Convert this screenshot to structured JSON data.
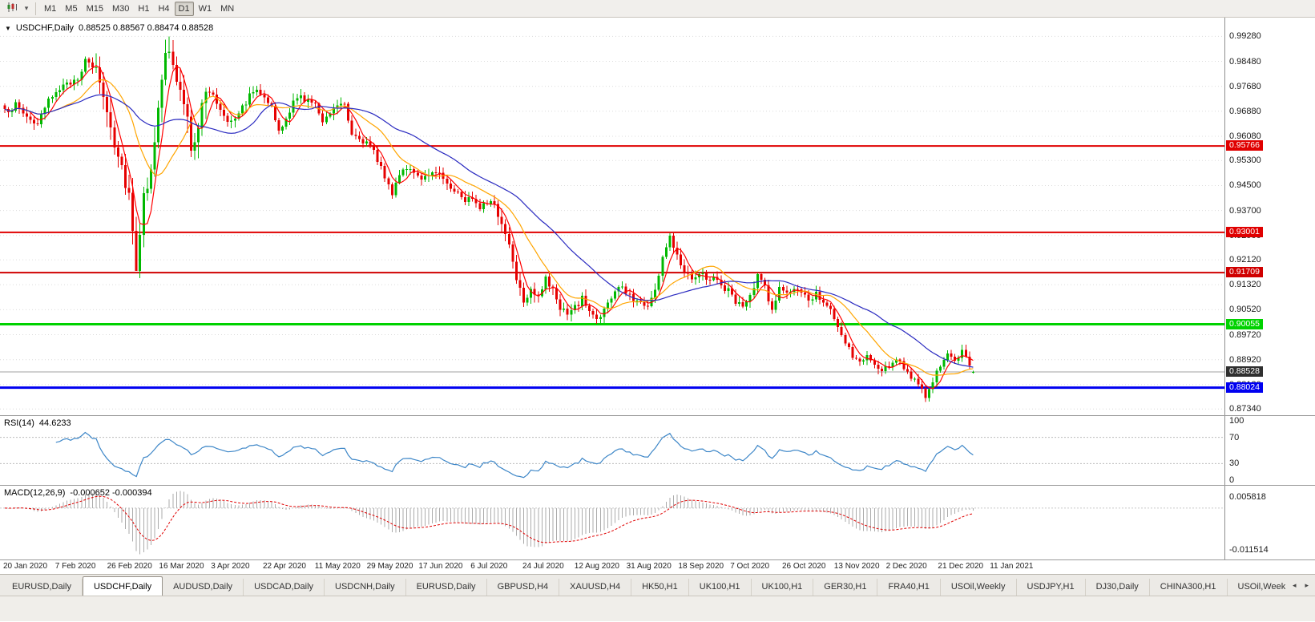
{
  "toolbar": {
    "timeframes": [
      "M1",
      "M5",
      "M15",
      "M30",
      "H1",
      "H4",
      "D1",
      "W1",
      "MN"
    ],
    "active_timeframe": "D1",
    "icons": [
      {
        "name": "chart-type-icon"
      },
      {
        "name": "dropdown-caret-icon",
        "glyph": "▾"
      }
    ]
  },
  "chart": {
    "marker": "▼",
    "symbol": "USDCHF,Daily",
    "ohlc_text": "0.88525 0.88567 0.88474 0.88528"
  },
  "price_axis": {
    "ticks": [
      "0.99280",
      "0.98480",
      "0.97680",
      "0.96880",
      "0.96080",
      "0.95300",
      "0.94500",
      "0.93700",
      "0.92900",
      "0.92120",
      "0.91320",
      "0.90520",
      "0.89720",
      "0.88920",
      "0.88120",
      "0.87340"
    ]
  },
  "levels": [
    {
      "label": "0.95766",
      "price": 0.95766,
      "color": "#E00000",
      "width": 2,
      "kind": "resistance-line"
    },
    {
      "label": "0.93001",
      "price": 0.93001,
      "color": "#E00000",
      "width": 2,
      "kind": "resistance-line"
    },
    {
      "label": "0.91709",
      "price": 0.91709,
      "color": "#D00000",
      "width": 2,
      "kind": "resistance-line"
    },
    {
      "label": "0.90055",
      "price": 0.90055,
      "color": "#00D200",
      "width": 3,
      "kind": "support-line"
    },
    {
      "label": "0.88024",
      "price": 0.88024,
      "color": "#0000F0",
      "width": 3,
      "kind": "support-line"
    },
    {
      "label": "0.88528",
      "price": 0.88528,
      "color": "#A0A0A0",
      "width": 1,
      "badge_bg": "#2F2F2F",
      "kind": "bid-line"
    }
  ],
  "rsi": {
    "title": "RSI(14)",
    "value": "44.6233",
    "color": "#3E87C8",
    "levels": [
      70,
      30
    ],
    "axis_labels": [
      {
        "v": 100,
        "t": "100"
      },
      {
        "v": 70,
        "t": "70"
      },
      {
        "v": 30,
        "t": "30"
      },
      {
        "v": 0,
        "t": "0"
      }
    ]
  },
  "macd": {
    "title": "MACD(12,26,9)",
    "values": "-0.000652 -0.000394",
    "axis_top": "0.005818",
    "axis_bottom": "-0.011514",
    "hist_color": "#ABABAB",
    "signal_color": "#E00000"
  },
  "date_axis": {
    "labels": [
      "20 Jan 2020",
      "7 Feb 2020",
      "26 Feb 2020",
      "16 Mar 2020",
      "3 Apr 2020",
      "22 Apr 2020",
      "11 May 2020",
      "29 May 2020",
      "17 Jun 2020",
      "6 Jul 2020",
      "24 Jul 2020",
      "12 Aug 2020",
      "31 Aug 2020",
      "18 Sep 2020",
      "7 Oct 2020",
      "26 Oct 2020",
      "13 Nov 2020",
      "2 Dec 2020",
      "21 Dec 2020",
      "11 Jan 2021"
    ]
  },
  "tabs": {
    "active_index": 1,
    "items": [
      "EURUSD,Daily",
      "USDCHF,Daily",
      "AUDUSD,Daily",
      "USDCAD,Daily",
      "USDCNH,Daily",
      "EURUSD,Daily",
      "GBPUSD,H4",
      "XAUUSD,H4",
      "HK50,H1",
      "UK100,H1",
      "UK100,H1",
      "GER30,H1",
      "FRA40,H1",
      "USOil,Weekly",
      "USDJPY,H1",
      "DJ30,Daily",
      "CHINA300,H1",
      "USOil,Weekly"
    ],
    "scroll_icons": {
      "left": "◂",
      "right": "▸"
    }
  },
  "chart_data": {
    "type": "candlestick",
    "symbol": "USDCHF",
    "timeframe": "Daily",
    "bars": 266,
    "price_range": {
      "top": 0.9988,
      "bottom": 0.8714
    },
    "last_ohlc": {
      "open": 0.88525,
      "high": 0.88567,
      "low": 0.88474,
      "close": 0.88528
    },
    "extremes": {
      "high": {
        "bar": 45,
        "price": 0.9928
      },
      "lows": [
        {
          "bar": 36,
          "price": 0.9182
        },
        {
          "bar": 252,
          "price": 0.8757
        }
      ]
    },
    "up_color": "#00B800",
    "down_color": "#E60000",
    "ma": [
      {
        "period": 5,
        "color": "#FF0000"
      },
      {
        "period": 15,
        "color": "#FFA500"
      },
      {
        "period": 34,
        "color": "#2A2AC0"
      }
    ],
    "indicators": {
      "rsi_period": 14,
      "rsi_last": 44.6233,
      "macd_fast": 12,
      "macd_slow": 26,
      "macd_signal": 9,
      "macd_last": -0.000652,
      "macd_signal_last": -0.000394
    },
    "close_path_anchors": [
      [
        0,
        0.9685
      ],
      [
        3,
        0.9708
      ],
      [
        6,
        0.9672
      ],
      [
        9,
        0.9645
      ],
      [
        12,
        0.9718
      ],
      [
        14,
        0.9758
      ],
      [
        17,
        0.977
      ],
      [
        20,
        0.98
      ],
      [
        22,
        0.9845
      ],
      [
        24,
        0.9832
      ],
      [
        26,
        0.9788
      ],
      [
        28,
        0.969
      ],
      [
        30,
        0.9595
      ],
      [
        32,
        0.9512
      ],
      [
        34,
        0.9425
      ],
      [
        36,
        0.9195
      ],
      [
        37,
        0.931
      ],
      [
        38,
        0.9405
      ],
      [
        40,
        0.952
      ],
      [
        42,
        0.9685
      ],
      [
        44,
        0.9862
      ],
      [
        45,
        0.9888
      ],
      [
        46,
        0.983
      ],
      [
        48,
        0.9745
      ],
      [
        50,
        0.9655
      ],
      [
        51,
        0.9575
      ],
      [
        53,
        0.9645
      ],
      [
        55,
        0.9752
      ],
      [
        57,
        0.9738
      ],
      [
        59,
        0.9695
      ],
      [
        61,
        0.966
      ],
      [
        63,
        0.9672
      ],
      [
        65,
        0.97
      ],
      [
        67,
        0.9738
      ],
      [
        69,
        0.976
      ],
      [
        71,
        0.9742
      ],
      [
        73,
        0.97
      ],
      [
        75,
        0.9618
      ],
      [
        77,
        0.9662
      ],
      [
        79,
        0.9715
      ],
      [
        81,
        0.9735
      ],
      [
        83,
        0.9722
      ],
      [
        85,
        0.9705
      ],
      [
        87,
        0.9662
      ],
      [
        89,
        0.9688
      ],
      [
        91,
        0.9712
      ],
      [
        93,
        0.9718
      ],
      [
        95,
        0.9618
      ],
      [
        97,
        0.9605
      ],
      [
        99,
        0.9585
      ],
      [
        101,
        0.9555
      ],
      [
        103,
        0.951
      ],
      [
        105,
        0.9455
      ],
      [
        106,
        0.9425
      ],
      [
        107,
        0.9448
      ],
      [
        108,
        0.9488
      ],
      [
        110,
        0.9512
      ],
      [
        112,
        0.9498
      ],
      [
        114,
        0.9462
      ],
      [
        116,
        0.9478
      ],
      [
        118,
        0.9502
      ],
      [
        120,
        0.9472
      ],
      [
        122,
        0.9448
      ],
      [
        124,
        0.9425
      ],
      [
        126,
        0.9402
      ],
      [
        128,
        0.9412
      ],
      [
        130,
        0.9385
      ],
      [
        132,
        0.9402
      ],
      [
        134,
        0.9382
      ],
      [
        136,
        0.933
      ],
      [
        138,
        0.9262
      ],
      [
        140,
        0.916
      ],
      [
        142,
        0.9085
      ],
      [
        144,
        0.9122
      ],
      [
        146,
        0.9098
      ],
      [
        148,
        0.9148
      ],
      [
        150,
        0.9112
      ],
      [
        152,
        0.9062
      ],
      [
        154,
        0.9035
      ],
      [
        156,
        0.9058
      ],
      [
        158,
        0.9088
      ],
      [
        160,
        0.9048
      ],
      [
        162,
        0.9022
      ],
      [
        164,
        0.9052
      ],
      [
        166,
        0.9088
      ],
      [
        168,
        0.9128
      ],
      [
        170,
        0.9108
      ],
      [
        172,
        0.9088
      ],
      [
        174,
        0.9075
      ],
      [
        176,
        0.9068
      ],
      [
        178,
        0.9112
      ],
      [
        180,
        0.9222
      ],
      [
        182,
        0.9282
      ],
      [
        184,
        0.9232
      ],
      [
        186,
        0.9178
      ],
      [
        188,
        0.9158
      ],
      [
        190,
        0.9172
      ],
      [
        192,
        0.9152
      ],
      [
        194,
        0.9158
      ],
      [
        196,
        0.9128
      ],
      [
        198,
        0.9112
      ],
      [
        200,
        0.9082
      ],
      [
        202,
        0.9058
      ],
      [
        204,
        0.9092
      ],
      [
        206,
        0.9158
      ],
      [
        208,
        0.9128
      ],
      [
        210,
        0.9048
      ],
      [
        212,
        0.9122
      ],
      [
        214,
        0.9102
      ],
      [
        216,
        0.9122
      ],
      [
        218,
        0.9098
      ],
      [
        220,
        0.9082
      ],
      [
        222,
        0.9108
      ],
      [
        224,
        0.9082
      ],
      [
        226,
        0.9048
      ],
      [
        228,
        0.8988
      ],
      [
        230,
        0.8948
      ],
      [
        232,
        0.8902
      ],
      [
        234,
        0.8882
      ],
      [
        236,
        0.8905
      ],
      [
        238,
        0.8872
      ],
      [
        240,
        0.8852
      ],
      [
        242,
        0.8875
      ],
      [
        244,
        0.8898
      ],
      [
        246,
        0.8868
      ],
      [
        248,
        0.8838
      ],
      [
        250,
        0.8808
      ],
      [
        252,
        0.8775
      ],
      [
        253,
        0.8792
      ],
      [
        254,
        0.8828
      ],
      [
        256,
        0.8868
      ],
      [
        258,
        0.8905
      ],
      [
        260,
        0.8892
      ],
      [
        262,
        0.8915
      ],
      [
        264,
        0.8878
      ],
      [
        265,
        0.88528
      ]
    ]
  }
}
